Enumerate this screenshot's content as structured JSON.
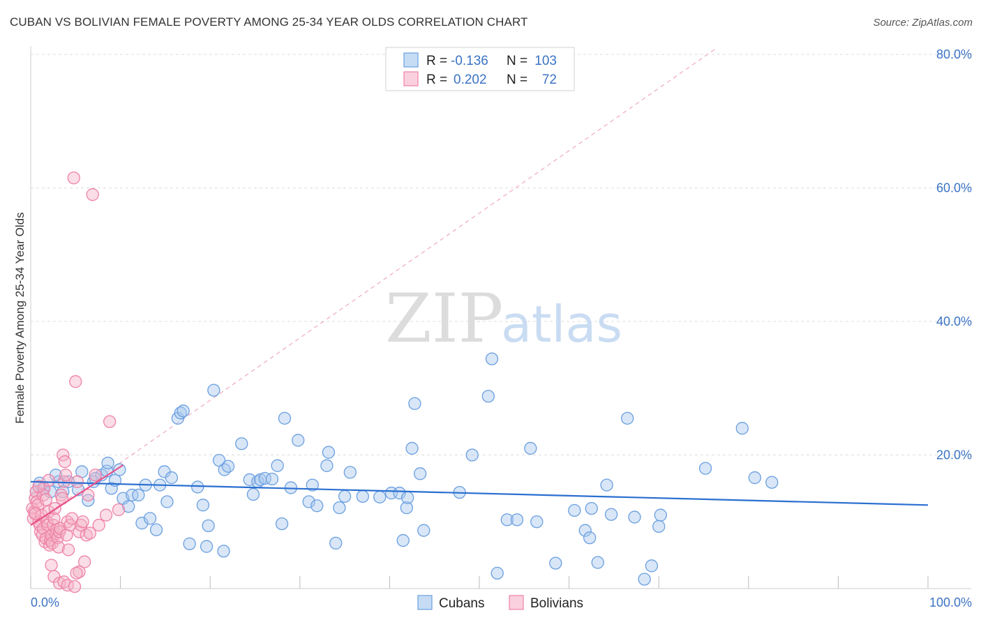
{
  "title": "CUBAN VS BOLIVIAN FEMALE POVERTY AMONG 25-34 YEAR OLDS CORRELATION CHART",
  "source": "Source: ZipAtlas.com",
  "watermark": {
    "zip": "ZIP",
    "atlas": "atlas"
  },
  "legend": {
    "r_label": "R =",
    "n_label": "N =",
    "rows": [
      {
        "r": "-0.136",
        "n": "103",
        "color": "#a9c7ee"
      },
      {
        "r": "0.202",
        "n": "72",
        "color": "#f5b3c8"
      }
    ]
  },
  "bottom_legend": [
    "Cubans",
    "Bolivians"
  ],
  "chart_data": {
    "type": "scatter",
    "ylabel": "Female Poverty Among 25-34 Year Olds",
    "x_tick_labels": [
      "0.0%",
      "100.0%"
    ],
    "y_tick_labels": [
      "20.0%",
      "40.0%",
      "60.0%",
      "80.0%"
    ],
    "xlim": [
      0,
      100
    ],
    "ylim": [
      0,
      81
    ],
    "y_ticks": [
      20,
      40,
      60,
      80
    ],
    "grid": true,
    "series": [
      {
        "name": "Cubans",
        "color": "#6a9fe0",
        "fill": "#a9c7ee",
        "trend": {
          "x0": 0,
          "y0": 16.0,
          "x1": 100,
          "y1": 12.5,
          "color": "#2a6fd0"
        },
        "points": [
          [
            0.6,
            14.5
          ],
          [
            1.4,
            15
          ],
          [
            2.2,
            14.5
          ],
          [
            3.1,
            16
          ],
          [
            4.2,
            16
          ],
          [
            5.3,
            14.8
          ],
          [
            5.7,
            17.5
          ],
          [
            6.4,
            13.2
          ],
          [
            7.0,
            16
          ],
          [
            7.9,
            17
          ],
          [
            8.5,
            17.6
          ],
          [
            8.6,
            18.8
          ],
          [
            9.0,
            15
          ],
          [
            9.4,
            16.2
          ],
          [
            9.9,
            17.8
          ],
          [
            10.3,
            13.5
          ],
          [
            10.9,
            12.3
          ],
          [
            11.3,
            14
          ],
          [
            12.0,
            14
          ],
          [
            12.4,
            9.8
          ],
          [
            12.8,
            15.5
          ],
          [
            13.3,
            10.5
          ],
          [
            14.0,
            8.8
          ],
          [
            14.4,
            15.5
          ],
          [
            14.9,
            17.5
          ],
          [
            15.2,
            13
          ],
          [
            16.4,
            25.5
          ],
          [
            16.7,
            26.3
          ],
          [
            17.0,
            26.6
          ],
          [
            17.7,
            6.7
          ],
          [
            18.6,
            15.2
          ],
          [
            19.2,
            12.5
          ],
          [
            19.6,
            6.3
          ],
          [
            19.8,
            9.4
          ],
          [
            20.4,
            29.7
          ],
          [
            21.0,
            19.2
          ],
          [
            21.5,
            5.6
          ],
          [
            21.6,
            17.8
          ],
          [
            22.0,
            18.3
          ],
          [
            23.5,
            21.7
          ],
          [
            24.4,
            16.3
          ],
          [
            24.8,
            14.1
          ],
          [
            25.3,
            16
          ],
          [
            25.6,
            16.3
          ],
          [
            26.1,
            16.5
          ],
          [
            26.9,
            16.4
          ],
          [
            27.5,
            18.4
          ],
          [
            28.0,
            9.7
          ],
          [
            28.3,
            25.5
          ],
          [
            29.0,
            15.1
          ],
          [
            29.8,
            22.2
          ],
          [
            31.0,
            13
          ],
          [
            31.4,
            15.5
          ],
          [
            31.9,
            12.4
          ],
          [
            33.0,
            18.4
          ],
          [
            33.2,
            20.4
          ],
          [
            34.0,
            6.8
          ],
          [
            34.4,
            12.1
          ],
          [
            35.0,
            13.8
          ],
          [
            35.6,
            17.4
          ],
          [
            37.0,
            13.8
          ],
          [
            38.9,
            13.7
          ],
          [
            40.2,
            14.3
          ],
          [
            41.1,
            14.3
          ],
          [
            41.5,
            7.2
          ],
          [
            41.9,
            12.1
          ],
          [
            42.0,
            13.6
          ],
          [
            42.5,
            21
          ],
          [
            42.8,
            27.7
          ],
          [
            43.4,
            17.2
          ],
          [
            43.8,
            8.7
          ],
          [
            47.8,
            14.4
          ],
          [
            49.2,
            20
          ],
          [
            51.0,
            28.8
          ],
          [
            51.4,
            34.4
          ],
          [
            52.0,
            2.3
          ],
          [
            53.1,
            10.3
          ],
          [
            54.2,
            10.3
          ],
          [
            55.7,
            21
          ],
          [
            56.4,
            10
          ],
          [
            58.5,
            3.8
          ],
          [
            60.6,
            11.7
          ],
          [
            61.8,
            8.7
          ],
          [
            62.3,
            7.6
          ],
          [
            62.5,
            12
          ],
          [
            64.2,
            15.5
          ],
          [
            64.7,
            11.1
          ],
          [
            66.5,
            25.5
          ],
          [
            67.3,
            10.7
          ],
          [
            68.4,
            1.4
          ],
          [
            69.2,
            3.4
          ],
          [
            70.0,
            9.3
          ],
          [
            70.2,
            11
          ],
          [
            75.2,
            18
          ],
          [
            79.3,
            24
          ],
          [
            80.7,
            16.6
          ],
          [
            82.6,
            15.9
          ],
          [
            63.2,
            3.9
          ],
          [
            7.2,
            16.5
          ],
          [
            2.8,
            17
          ],
          [
            1.0,
            15.8
          ],
          [
            3.6,
            14.5
          ],
          [
            15.7,
            16.6
          ]
        ]
      },
      {
        "name": "Bolivians",
        "color": "#ee82a6",
        "fill": "#f5b3c8",
        "trend": {
          "x0": 0,
          "y0": 9.5,
          "x1": 10.3,
          "y1": 18.5,
          "color": "#e8528a"
        },
        "trend_ext": {
          "x0": 0,
          "y0": 9.5,
          "x1": 76.5,
          "y1": 81
        },
        "points": [
          [
            0.2,
            12
          ],
          [
            0.3,
            10.5
          ],
          [
            0.4,
            11.5
          ],
          [
            0.5,
            13.5
          ],
          [
            0.6,
            14.5
          ],
          [
            0.7,
            13
          ],
          [
            0.8,
            12.5
          ],
          [
            0.9,
            10
          ],
          [
            1.0,
            9.5
          ],
          [
            1.1,
            8.5
          ],
          [
            1.2,
            11
          ],
          [
            1.3,
            8
          ],
          [
            1.4,
            9
          ],
          [
            1.5,
            15
          ],
          [
            1.6,
            7
          ],
          [
            1.7,
            7.5
          ],
          [
            1.8,
            10
          ],
          [
            1.9,
            9.5
          ],
          [
            2.0,
            11.5
          ],
          [
            2.1,
            6.5
          ],
          [
            2.2,
            7.2
          ],
          [
            2.3,
            8
          ],
          [
            2.4,
            6.8
          ],
          [
            2.5,
            9.5
          ],
          [
            2.6,
            10.5
          ],
          [
            2.7,
            12
          ],
          [
            2.8,
            8.2
          ],
          [
            2.9,
            8.8
          ],
          [
            3.0,
            7.6
          ],
          [
            3.1,
            6.2
          ],
          [
            3.2,
            8.5
          ],
          [
            3.3,
            9
          ],
          [
            3.4,
            14
          ],
          [
            3.5,
            13.5
          ],
          [
            3.6,
            20
          ],
          [
            3.7,
            16
          ],
          [
            3.8,
            19
          ],
          [
            3.9,
            17
          ],
          [
            4.0,
            8
          ],
          [
            4.1,
            10
          ],
          [
            4.2,
            5.8
          ],
          [
            4.4,
            9.5
          ],
          [
            4.6,
            10.5
          ],
          [
            4.8,
            61.5
          ],
          [
            5.0,
            31
          ],
          [
            5.2,
            16
          ],
          [
            5.4,
            8.5
          ],
          [
            5.6,
            9.5
          ],
          [
            5.8,
            10
          ],
          [
            6.0,
            4
          ],
          [
            6.2,
            8
          ],
          [
            6.4,
            14
          ],
          [
            6.6,
            8.3
          ],
          [
            5.4,
            2.5
          ],
          [
            6.9,
            59
          ],
          [
            7.2,
            17
          ],
          [
            7.6,
            9.5
          ],
          [
            8.4,
            11
          ],
          [
            8.8,
            25
          ],
          [
            9.8,
            11.8
          ],
          [
            2.3,
            3.5
          ],
          [
            2.6,
            1.8
          ],
          [
            3.2,
            0.8
          ],
          [
            3.7,
            1
          ],
          [
            4.1,
            0.5
          ],
          [
            4.9,
            0.3
          ],
          [
            5.1,
            2.3
          ],
          [
            1.4,
            14
          ],
          [
            0.9,
            15.3
          ],
          [
            2.0,
            16.2
          ],
          [
            1.7,
            13.3
          ],
          [
            0.5,
            11.2
          ]
        ]
      }
    ]
  }
}
